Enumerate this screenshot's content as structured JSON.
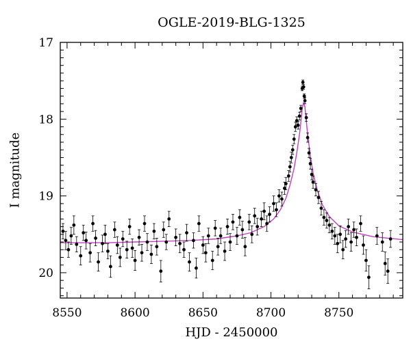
{
  "chart_data": {
    "type": "scatter",
    "title": "OGLE-2019-BLG-1325",
    "xlabel": "HJD - 2450000",
    "ylabel": "I magnitude",
    "xlim": [
      8545,
      8797
    ],
    "ylim": [
      20.33,
      17.0
    ],
    "y_inverted": true,
    "grid": false,
    "x_major_ticks": [
      8550,
      8600,
      8650,
      8700,
      8750
    ],
    "y_major_ticks": [
      17,
      18,
      19,
      20
    ],
    "colors": {
      "points": "#000000",
      "model": "#c040c0",
      "axes": "#000000"
    },
    "series": [
      {
        "style": "points-with-errorbars",
        "points": [
          [
            8547,
            19.46,
            0.1
          ],
          [
            8549,
            19.58,
            0.12
          ],
          [
            8551,
            19.7,
            0.1
          ],
          [
            8553,
            19.52,
            0.11
          ],
          [
            8555,
            19.38,
            0.12
          ],
          [
            8557,
            19.63,
            0.1
          ],
          [
            8560,
            19.78,
            0.12
          ],
          [
            8562,
            19.48,
            0.1
          ],
          [
            8564,
            19.58,
            0.11
          ],
          [
            8567,
            19.74,
            0.12
          ],
          [
            8569,
            19.36,
            0.1
          ],
          [
            8571,
            19.55,
            0.1
          ],
          [
            8573,
            19.86,
            0.12
          ],
          [
            8576,
            19.62,
            0.11
          ],
          [
            8578,
            19.5,
            0.12
          ],
          [
            8580,
            19.72,
            0.1
          ],
          [
            8582,
            19.92,
            0.14
          ],
          [
            8585,
            19.44,
            0.1
          ],
          [
            8587,
            19.64,
            0.11
          ],
          [
            8589,
            19.8,
            0.12
          ],
          [
            8591,
            19.56,
            0.1
          ],
          [
            8594,
            19.7,
            0.11
          ],
          [
            8596,
            19.4,
            0.1
          ],
          [
            8598,
            19.68,
            0.12
          ],
          [
            8600,
            19.84,
            0.13
          ],
          [
            8603,
            19.54,
            0.1
          ],
          [
            8605,
            19.74,
            0.11
          ],
          [
            8607,
            19.36,
            0.1
          ],
          [
            8609,
            19.6,
            0.11
          ],
          [
            8612,
            19.76,
            0.12
          ],
          [
            8614,
            19.46,
            0.1
          ],
          [
            8616,
            19.66,
            0.11
          ],
          [
            8619,
            19.98,
            0.14
          ],
          [
            8621,
            19.44,
            0.1
          ],
          [
            8623,
            19.6,
            0.1
          ],
          [
            8625,
            19.3,
            0.1
          ],
          [
            8630,
            19.54,
            0.11
          ],
          [
            8633,
            19.62,
            0.12
          ],
          [
            8636,
            19.7,
            0.1
          ],
          [
            8638,
            19.48,
            0.11
          ],
          [
            8640,
            19.86,
            0.12
          ],
          [
            8643,
            19.58,
            0.1
          ],
          [
            8645,
            19.94,
            0.13
          ],
          [
            8647,
            19.36,
            0.1
          ],
          [
            8650,
            19.64,
            0.11
          ],
          [
            8652,
            19.74,
            0.12
          ],
          [
            8654,
            19.52,
            0.1
          ],
          [
            8657,
            19.84,
            0.12
          ],
          [
            8659,
            19.42,
            0.1
          ],
          [
            8661,
            19.66,
            0.11
          ],
          [
            8663,
            19.52,
            0.1
          ],
          [
            8666,
            19.72,
            0.12
          ],
          [
            8668,
            19.4,
            0.1
          ],
          [
            8670,
            19.6,
            0.11
          ],
          [
            8672,
            19.34,
            0.1
          ],
          [
            8675,
            19.52,
            0.11
          ],
          [
            8677,
            19.28,
            0.1
          ],
          [
            8679,
            19.44,
            0.11
          ],
          [
            8681,
            19.66,
            0.12
          ],
          [
            8684,
            19.34,
            0.1
          ],
          [
            8686,
            19.5,
            0.11
          ],
          [
            8688,
            19.26,
            0.1
          ],
          [
            8690,
            19.4,
            0.11
          ],
          [
            8693,
            19.3,
            0.1
          ],
          [
            8695,
            19.2,
            0.11
          ],
          [
            8697,
            19.36,
            0.1
          ],
          [
            8699,
            19.24,
            0.1
          ],
          [
            8702,
            19.1,
            0.1
          ],
          [
            8704,
            19.18,
            0.09
          ],
          [
            8706,
            19.0,
            0.08
          ],
          [
            8708,
            19.04,
            0.09
          ],
          [
            8710,
            18.9,
            0.08
          ],
          [
            8711,
            18.84,
            0.08
          ],
          [
            8713,
            18.74,
            0.07
          ],
          [
            8714,
            18.62,
            0.07
          ],
          [
            8715,
            18.5,
            0.07
          ],
          [
            8716,
            18.4,
            0.06
          ],
          [
            8717,
            18.26,
            0.06
          ],
          [
            8718,
            18.1,
            0.06
          ],
          [
            8719,
            18.02,
            0.05
          ],
          [
            8720,
            18.08,
            0.05
          ],
          [
            8721,
            17.96,
            0.05
          ],
          [
            8722,
            17.86,
            0.04
          ],
          [
            8723,
            17.6,
            0.03
          ],
          [
            8723.5,
            17.52,
            0.03
          ],
          [
            8724,
            17.58,
            0.03
          ],
          [
            8724.5,
            17.7,
            0.03
          ],
          [
            8725,
            17.76,
            0.04
          ],
          [
            8726,
            17.98,
            0.05
          ],
          [
            8727,
            18.24,
            0.06
          ],
          [
            8728,
            18.44,
            0.06
          ],
          [
            8729,
            18.58,
            0.07
          ],
          [
            8730,
            18.72,
            0.07
          ],
          [
            8731,
            18.82,
            0.08
          ],
          [
            8733,
            18.92,
            0.08
          ],
          [
            8735,
            19.02,
            0.08
          ],
          [
            8737,
            19.16,
            0.09
          ],
          [
            8739,
            19.28,
            0.1
          ],
          [
            8741,
            19.32,
            0.1
          ],
          [
            8743,
            19.38,
            0.1
          ],
          [
            8745,
            19.46,
            0.1
          ],
          [
            8747,
            19.52,
            0.11
          ],
          [
            8749,
            19.62,
            0.12
          ],
          [
            8751,
            19.5,
            0.11
          ],
          [
            8753,
            19.7,
            0.12
          ],
          [
            8755,
            19.56,
            0.11
          ],
          [
            8757,
            19.4,
            0.1
          ],
          [
            8759,
            19.6,
            0.12
          ],
          [
            8761,
            19.44,
            0.1
          ],
          [
            8763,
            19.54,
            0.11
          ],
          [
            8766,
            19.36,
            0.1
          ],
          [
            8768,
            19.64,
            0.12
          ],
          [
            8770,
            19.84,
            0.14
          ],
          [
            8772,
            20.06,
            0.15
          ],
          [
            8778,
            19.52,
            0.11
          ],
          [
            8782,
            19.6,
            0.12
          ],
          [
            8784,
            19.88,
            0.15
          ],
          [
            8786,
            19.98,
            0.16
          ],
          [
            8788,
            19.56,
            0.11
          ]
        ]
      },
      {
        "style": "model-curve",
        "points": [
          [
            8545,
            19.61
          ],
          [
            8580,
            19.61
          ],
          [
            8600,
            19.6
          ],
          [
            8620,
            19.59
          ],
          [
            8640,
            19.58
          ],
          [
            8660,
            19.56
          ],
          [
            8675,
            19.52
          ],
          [
            8685,
            19.48
          ],
          [
            8695,
            19.4
          ],
          [
            8702,
            19.3
          ],
          [
            8707,
            19.18
          ],
          [
            8711,
            19.03
          ],
          [
            8714,
            18.86
          ],
          [
            8717,
            18.64
          ],
          [
            8719,
            18.44
          ],
          [
            8721,
            18.2
          ],
          [
            8722,
            18.04
          ],
          [
            8723,
            17.86
          ],
          [
            8724,
            17.78
          ],
          [
            8725,
            17.84
          ],
          [
            8726,
            18.02
          ],
          [
            8727,
            18.2
          ],
          [
            8729,
            18.48
          ],
          [
            8731,
            18.7
          ],
          [
            8734,
            18.92
          ],
          [
            8738,
            19.12
          ],
          [
            8743,
            19.27
          ],
          [
            8750,
            19.39
          ],
          [
            8760,
            19.47
          ],
          [
            8775,
            19.53
          ],
          [
            8797,
            19.57
          ]
        ]
      }
    ]
  }
}
